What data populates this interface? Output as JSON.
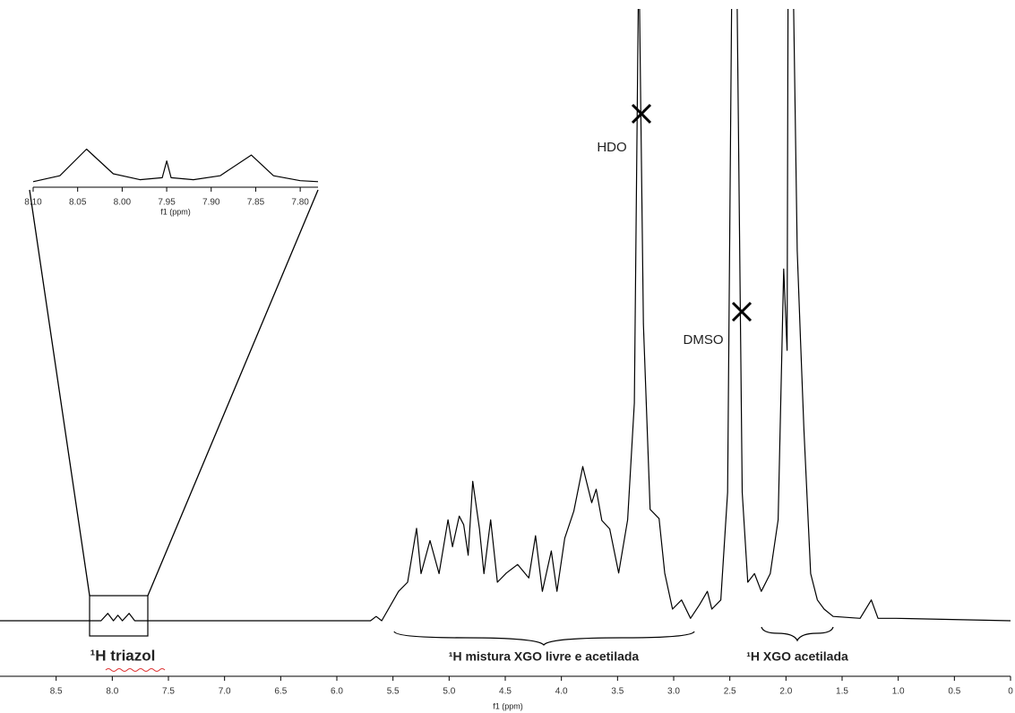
{
  "chart_data": [
    {
      "type": "line",
      "color": "#000000",
      "xlabel": "f1 (ppm)",
      "x": [
        9.0,
        8.1,
        8.04,
        7.99,
        7.95,
        7.91,
        7.85,
        7.8,
        5.7,
        5.65,
        5.6,
        5.45,
        5.37,
        5.29,
        5.25,
        5.17,
        5.09,
        5.01,
        4.97,
        4.91,
        4.87,
        4.83,
        4.79,
        4.73,
        4.69,
        4.63,
        4.57,
        4.49,
        4.39,
        4.29,
        4.23,
        4.17,
        4.09,
        4.04,
        3.97,
        3.89,
        3.81,
        3.73,
        3.69,
        3.64,
        3.57,
        3.49,
        3.41,
        3.35,
        3.31,
        3.27,
        3.21,
        3.13,
        3.08,
        3.01,
        2.93,
        2.85,
        2.77,
        2.7,
        2.66,
        2.58,
        2.52,
        2.48,
        2.44,
        2.39,
        2.34,
        2.28,
        2.22,
        2.14,
        2.07,
        2.02,
        1.99,
        1.98,
        1.94,
        1.9,
        1.87,
        1.84,
        1.78,
        1.72,
        1.66,
        1.58,
        1.34,
        1.24,
        1.18,
        1.02,
        0.0
      ],
      "values": [
        0,
        0,
        1.2,
        0,
        0.9,
        0,
        1.2,
        0,
        0,
        0.7,
        0,
        4.8,
        6.3,
        15.1,
        7.7,
        13.1,
        7.7,
        16.5,
        12.1,
        17.1,
        15.7,
        10.7,
        22.8,
        15.0,
        7.7,
        16.5,
        6.3,
        7.8,
        9.2,
        7.0,
        13.9,
        4.8,
        11.4,
        4.8,
        13.5,
        17.9,
        25.2,
        19.3,
        21.5,
        16.4,
        15.0,
        7.8,
        16.5,
        35.6,
        110,
        48.5,
        18.2,
        16.7,
        7.8,
        1.9,
        3.4,
        0.4,
        2.6,
        4.8,
        1.9,
        3.4,
        21.0,
        110,
        110,
        21.0,
        6.3,
        7.7,
        4.8,
        7.7,
        16.5,
        57.5,
        44.2,
        110,
        110,
        60.5,
        45.8,
        31.2,
        7.7,
        3.4,
        1.9,
        0.7,
        0.4,
        3.4,
        0.4,
        0.4,
        0
      ],
      "xlim": [
        9.0,
        0.0
      ],
      "ylim": [
        0,
        100
      ],
      "xticks": [
        8.5,
        {
          "value": 8,
          "label": "8.0"
        },
        7.5,
        {
          "value": 7,
          "label": "7.0"
        },
        6.5,
        {
          "value": 6,
          "label": "6.0"
        },
        5.5,
        {
          "value": 5,
          "label": "5.0"
        },
        4.5,
        {
          "value": 4,
          "label": "4.0"
        },
        3.5,
        {
          "value": 3,
          "label": "3.0"
        },
        2.5,
        {
          "value": 2,
          "label": "2.0"
        },
        1.5,
        {
          "value": 1,
          "label": "1.0"
        },
        0.5,
        0
      ],
      "annotations": [
        "HDO",
        "DMSO",
        "¹H triazol",
        "¹H mistura XGO livre e acetilada",
        "¹H XGO acetilada"
      ]
    },
    {
      "type": "line",
      "color": "#000000",
      "xlabel": "f1 (ppm)",
      "x": [
        8.1,
        8.07,
        8.04,
        8.01,
        7.98,
        7.955,
        7.95,
        7.945,
        7.92,
        7.89,
        7.855,
        7.83,
        7.8,
        7.78
      ],
      "values": [
        2,
        8,
        35,
        10,
        4,
        6,
        23,
        6,
        4,
        8,
        29,
        8,
        3,
        2
      ],
      "xlim": [
        8.1,
        7.78
      ],
      "ylim": [
        0,
        40
      ],
      "xticks": [
        {
          "value": 8.1,
          "label": "8.10"
        },
        {
          "value": 8.05,
          "label": "8.05"
        },
        {
          "value": 8,
          "label": "8.00"
        },
        {
          "value": 7.95,
          "label": "7.95"
        },
        {
          "value": 7.9,
          "label": "7.90"
        },
        {
          "value": 7.85,
          "label": "7.85"
        },
        {
          "value": 7.8,
          "label": "7.80"
        }
      ]
    }
  ]
}
